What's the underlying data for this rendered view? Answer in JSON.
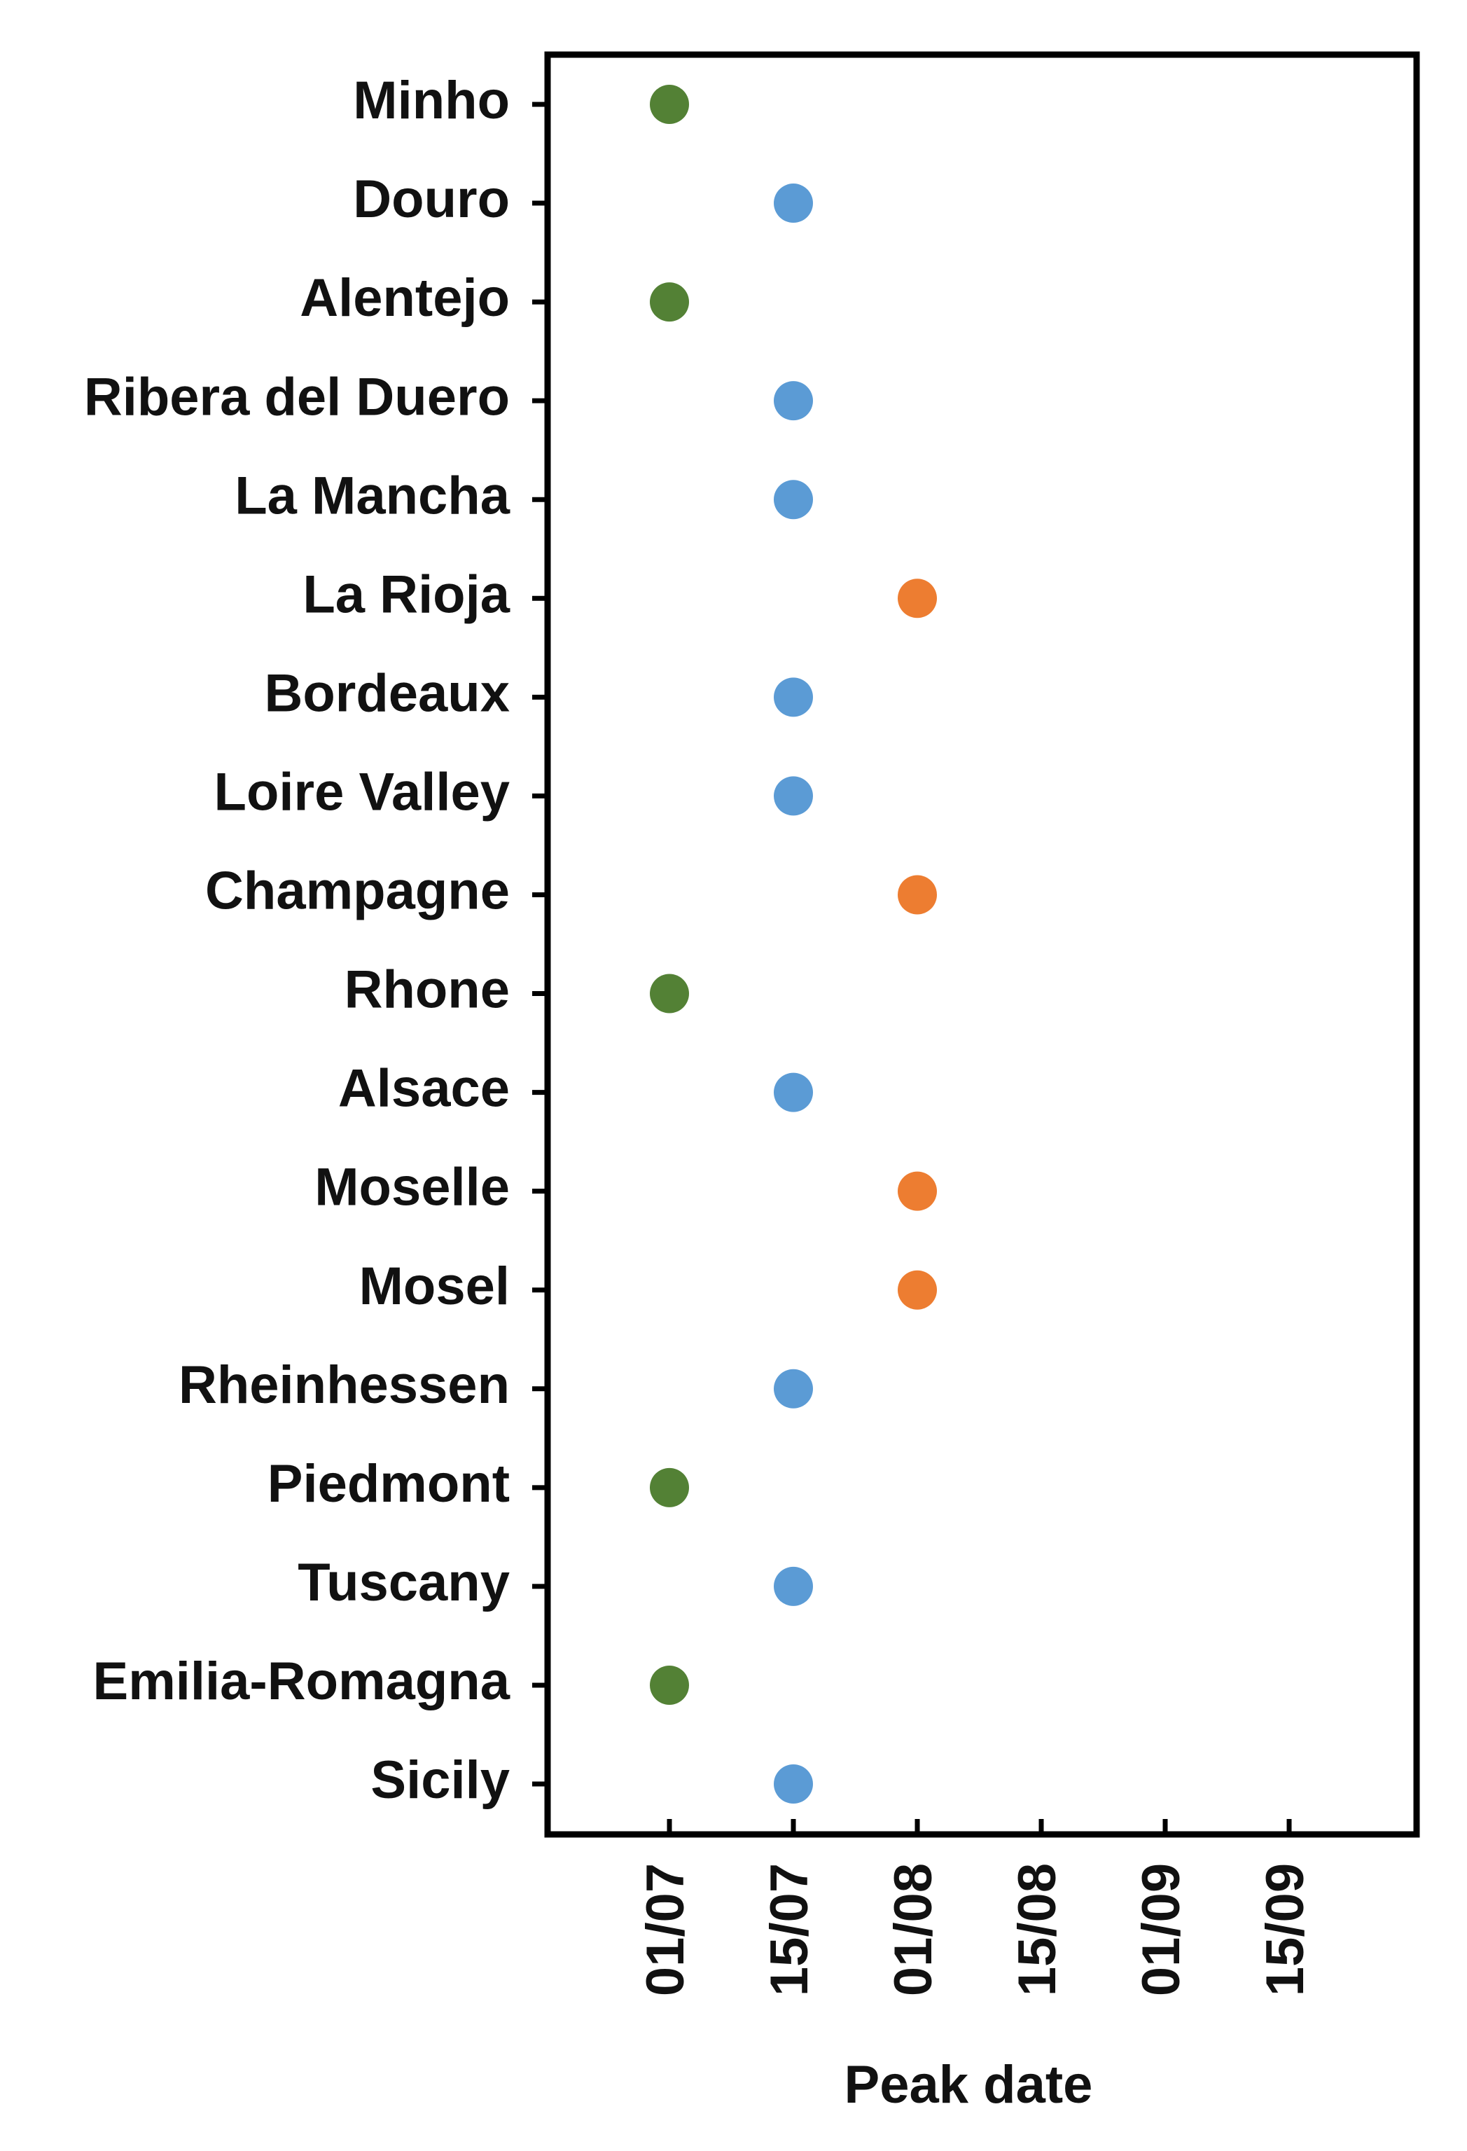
{
  "chart_data": {
    "type": "dot",
    "x_label": "Peak date",
    "categories": [
      "Minho",
      "Douro",
      "Alentejo",
      "Ribera del Duero",
      "La Mancha",
      "La Rioja",
      "Bordeaux",
      "Loire Valley",
      "Champagne",
      "Rhone",
      "Alsace",
      "Moselle",
      "Mosel",
      "Rheinhessen",
      "Piedmont",
      "Tuscany",
      "Emilia-Romagna",
      "Sicily"
    ],
    "values": [
      "01/07",
      "15/07",
      "01/07",
      "15/07",
      "15/07",
      "01/08",
      "15/07",
      "15/07",
      "01/08",
      "01/07",
      "15/07",
      "01/08",
      "01/08",
      "15/07",
      "01/07",
      "15/07",
      "01/07",
      "15/07"
    ],
    "colors": [
      "#538135",
      "#5b9bd5",
      "#538135",
      "#5b9bd5",
      "#5b9bd5",
      "#ed7d31",
      "#5b9bd5",
      "#5b9bd5",
      "#ed7d31",
      "#538135",
      "#5b9bd5",
      "#ed7d31",
      "#ed7d31",
      "#5b9bd5",
      "#538135",
      "#5b9bd5",
      "#538135",
      "#5b9bd5"
    ],
    "xticks": [
      "01/07",
      "15/07",
      "01/08",
      "15/08",
      "01/09",
      "15/09"
    ]
  }
}
